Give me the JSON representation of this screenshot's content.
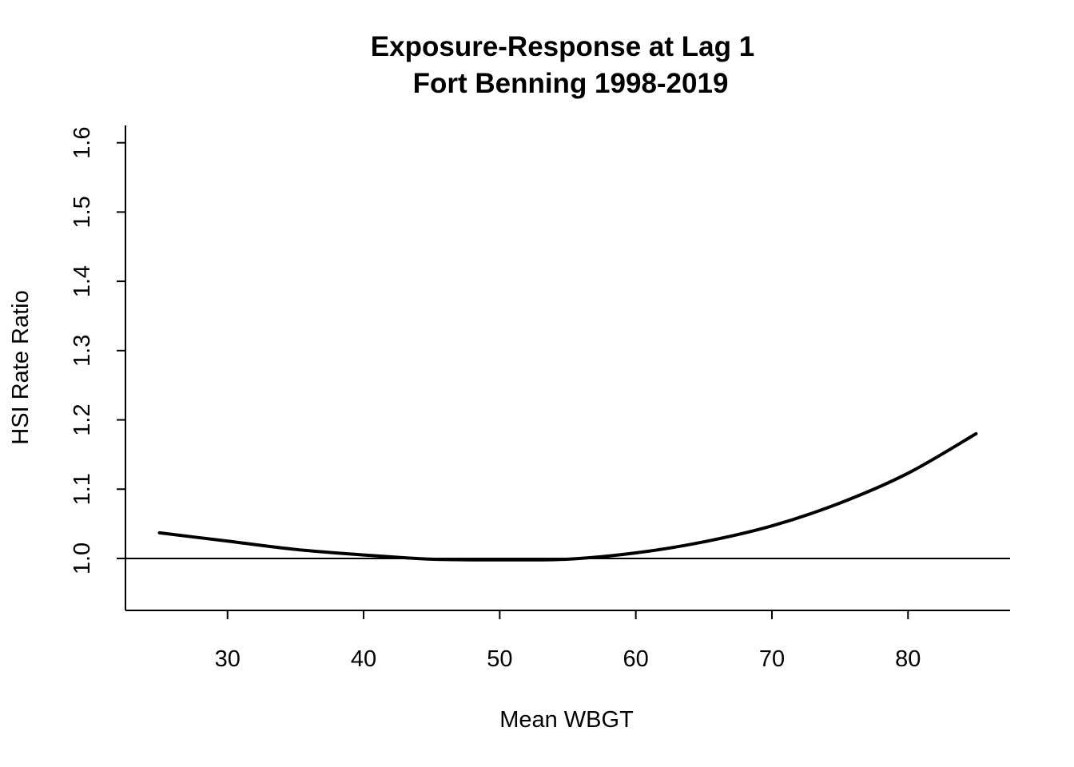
{
  "chart_data": {
    "type": "line",
    "title": "Exposure-Response at Lag 1",
    "subtitle": "Fort Benning 1998-2019",
    "xlabel": "Mean WBGT",
    "ylabel": "HSI Rate Ratio",
    "xlim": [
      22.5,
      87.5
    ],
    "ylim": [
      0.925,
      1.625
    ],
    "x_ticks": [
      30,
      40,
      50,
      60,
      70,
      80
    ],
    "y_ticks": [
      1.0,
      1.1,
      1.2,
      1.3,
      1.4,
      1.5,
      1.6
    ],
    "reference_line": 1.0,
    "grid": false,
    "series": [
      {
        "color": "#000000",
        "x": [
          25,
          30,
          35,
          40,
          45,
          50,
          55,
          60,
          65,
          70,
          75,
          80,
          85
        ],
        "y": [
          1.037,
          1.025,
          1.013,
          1.005,
          0.999,
          0.998,
          0.999,
          1.008,
          1.024,
          1.047,
          1.08,
          1.123,
          1.18
        ]
      }
    ]
  }
}
